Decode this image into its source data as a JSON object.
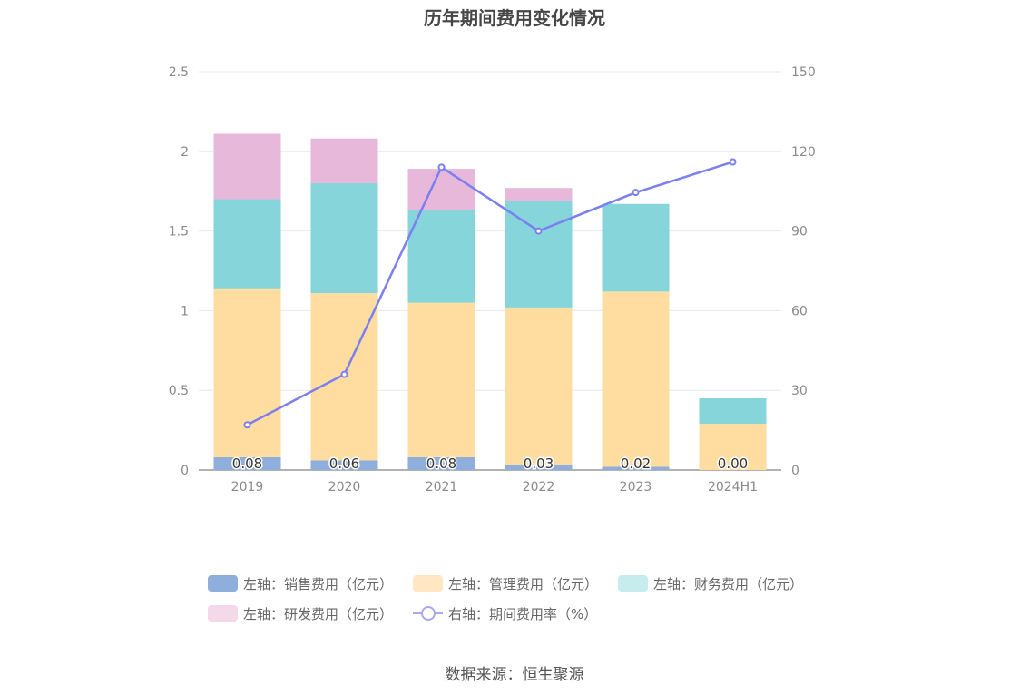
{
  "chart_data": {
    "type": "bar",
    "title": "历年期间费用变化情况",
    "categories": [
      "2019",
      "2020",
      "2021",
      "2022",
      "2023",
      "2024H1"
    ],
    "stacked": true,
    "series": [
      {
        "name": "左轴：销售费用（亿元）",
        "axis": "left",
        "color": "#8eaedc",
        "values": [
          0.08,
          0.06,
          0.08,
          0.03,
          0.02,
          0.0
        ]
      },
      {
        "name": "左轴：管理费用（亿元）",
        "axis": "left",
        "color": "#ffdca0",
        "values": [
          1.06,
          1.05,
          0.97,
          0.99,
          1.1,
          0.29
        ]
      },
      {
        "name": "左轴：财务费用（亿元）",
        "axis": "left",
        "color": "#86d5da",
        "values": [
          0.56,
          0.69,
          0.58,
          0.67,
          0.55,
          0.16
        ]
      },
      {
        "name": "左轴：研发费用（亿元）",
        "axis": "left",
        "color": "#e7b8da",
        "values": [
          0.41,
          0.28,
          0.26,
          0.08,
          0.0,
          0.0
        ]
      }
    ],
    "line": {
      "name": "右轴：期间费用率（%）",
      "axis": "right",
      "type": "line",
      "color": "#7b7ff0",
      "values": [
        17,
        36,
        114,
        90,
        104.5,
        116
      ]
    },
    "bar_labels": [
      "0.08",
      "0.06",
      "0.08",
      "0.03",
      "0.02",
      "0.00"
    ],
    "y_left": {
      "range": [
        0,
        2.5
      ],
      "ticks": [
        "0",
        "0.5",
        "1",
        "1.5",
        "2",
        "2.5"
      ]
    },
    "y_right": {
      "range": [
        0,
        150
      ],
      "ticks": [
        "0",
        "30",
        "60",
        "90",
        "120",
        "150"
      ]
    },
    "grid": true,
    "legend_position": "bottom",
    "legend_swatch_colors": [
      "#8eaedc",
      "#ffe7c4",
      "#c6ecee",
      "#f3d9ea",
      "#a9a8f2"
    ]
  },
  "source": "数据来源：恒生聚源"
}
